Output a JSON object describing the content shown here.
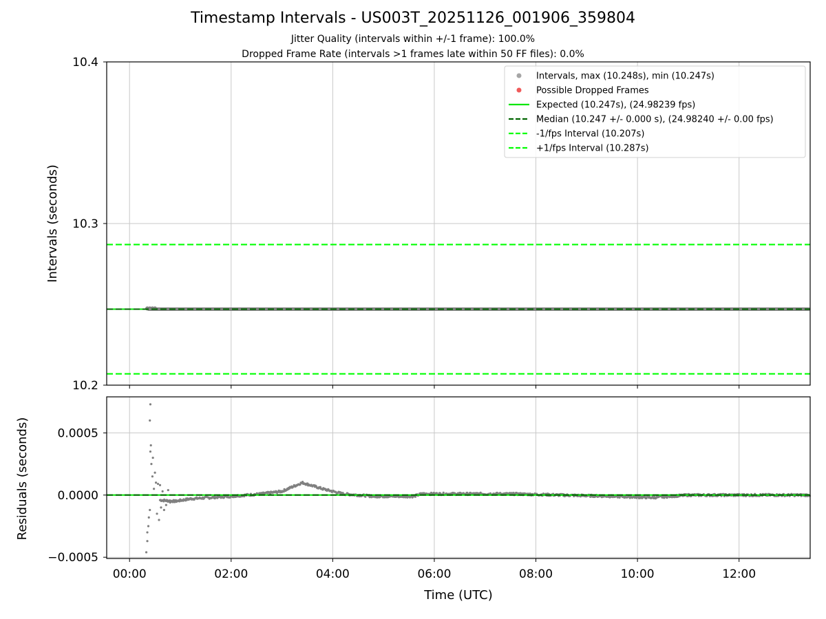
{
  "title": "Timestamp Intervals - US003T_20251126_001906_359804",
  "subtitle_jitter": "Jitter Quality (intervals within +/-1 frame): 100.0%",
  "subtitle_dropped": "Dropped Frame Rate (intervals >1 frames late within 50 FF files): 0.0%",
  "colors": {
    "intervals": "#808080",
    "intervals_legend": "#a6a6a6",
    "dropped": "#f05a5a",
    "expected": "#00e600",
    "median": "#006400",
    "band": "#00ff00",
    "grid": "#c8c8c8"
  },
  "chart_data": [
    {
      "type": "scatter",
      "panel": "top",
      "ylabel": "Intervals (seconds)",
      "ylim": [
        10.2,
        10.4
      ],
      "xlim_hours": [
        -0.45,
        13.4
      ],
      "yticks": [
        10.2,
        10.3,
        10.4
      ],
      "ytick_labels": [
        "10.2",
        "10.3",
        "10.4"
      ],
      "grid": true,
      "legend_position": "top-right",
      "legend": [
        {
          "label": "Intervals, max (10.248s), min (10.247s)",
          "style": "marker",
          "color_key": "intervals_legend"
        },
        {
          "label": "Possible Dropped Frames",
          "style": "marker",
          "color_key": "dropped"
        },
        {
          "label": "Expected (10.247s), (24.98239 fps)",
          "style": "solid",
          "color_key": "expected"
        },
        {
          "label": "Median (10.247 +/- 0.000 s), (24.98240 +/- 0.00 fps)",
          "style": "dashed",
          "color_key": "median"
        },
        {
          "label": "-1/fps Interval (10.207s)",
          "style": "dashed",
          "color_key": "band"
        },
        {
          "label": "+1/fps Interval (10.287s)",
          "style": "dashed",
          "color_key": "band"
        }
      ],
      "lines": {
        "expected": 10.247,
        "median": 10.247,
        "minus_one_frame": 10.207,
        "plus_one_frame": 10.287
      },
      "series": [
        {
          "name": "Intervals",
          "x_range_hours": [
            0.35,
            13.4
          ],
          "y": 10.247
        }
      ]
    },
    {
      "type": "scatter",
      "panel": "bottom",
      "xlabel": "Time (UTC)",
      "ylabel": "Residuals (seconds)",
      "ylim": [
        -0.00051,
        0.00079
      ],
      "xlim_hours": [
        -0.45,
        13.4
      ],
      "yticks": [
        -0.0005,
        0.0,
        0.0005
      ],
      "ytick_labels": [
        "−0.0005",
        "0.0000",
        "0.0005"
      ],
      "xticks_hours": [
        0,
        2,
        4,
        6,
        8,
        10,
        12
      ],
      "xtick_labels": [
        "00:00",
        "02:00",
        "04:00",
        "06:00",
        "08:00",
        "10:00",
        "12:00"
      ],
      "grid": true,
      "zero_line": 0.0,
      "trend_hours": [
        [
          0.6,
          -4e-05
        ],
        [
          0.9,
          -5e-05
        ],
        [
          1.2,
          -3e-05
        ],
        [
          2.0,
          -1e-05
        ],
        [
          2.6,
          1e-05
        ],
        [
          3.0,
          3e-05
        ],
        [
          3.4,
          0.0001
        ],
        [
          3.8,
          5e-05
        ],
        [
          4.2,
          1e-05
        ],
        [
          4.8,
          -1e-05
        ],
        [
          5.6,
          -1e-05
        ],
        [
          5.75,
          1e-05
        ],
        [
          7.5,
          1e-05
        ],
        [
          8.5,
          0.0
        ],
        [
          9.5,
          -1e-05
        ],
        [
          10.3,
          -2e-05
        ],
        [
          11.0,
          0.0
        ],
        [
          13.4,
          0.0
        ]
      ],
      "outliers_hours": [
        [
          0.33,
          -0.00046
        ],
        [
          0.35,
          -0.00037
        ],
        [
          0.35,
          -0.0003
        ],
        [
          0.37,
          -0.00025
        ],
        [
          0.38,
          -0.00018
        ],
        [
          0.4,
          -0.00012
        ],
        [
          0.41,
          0.00035
        ],
        [
          0.4,
          0.0006
        ],
        [
          0.41,
          0.00073
        ],
        [
          0.42,
          0.0004
        ],
        [
          0.43,
          0.00025
        ],
        [
          0.45,
          0.00015
        ],
        [
          0.46,
          0.0003
        ],
        [
          0.48,
          5e-05
        ],
        [
          0.5,
          0.00018
        ],
        [
          0.52,
          0.0001
        ],
        [
          0.54,
          -0.00015
        ],
        [
          0.56,
          9e-05
        ],
        [
          0.58,
          -0.0002
        ],
        [
          0.6,
          8e-05
        ],
        [
          0.62,
          -0.0001
        ],
        [
          0.65,
          3e-05
        ],
        [
          0.68,
          -0.00012
        ],
        [
          0.72,
          -8e-05
        ],
        [
          0.76,
          4e-05
        ],
        [
          0.8,
          -6e-05
        ]
      ]
    }
  ]
}
